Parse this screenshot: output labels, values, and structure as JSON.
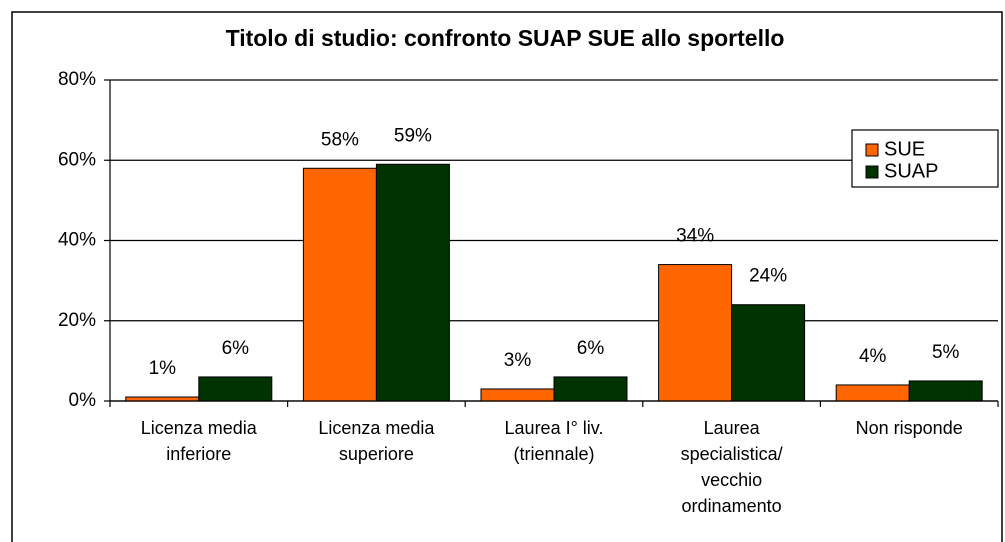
{
  "chart_data": {
    "type": "bar",
    "title": "Titolo di studio: confronto SUAP SUE allo sportello",
    "categories": [
      "Licenza media\ninferiore",
      "Licenza media\nsuperiore",
      "Laurea I° liv.\n(triennale)",
      "Laurea\nspecialistica/\nvecchio\nordinamento",
      "Non risponde"
    ],
    "series": [
      {
        "name": "SUE",
        "color": "#ff6600",
        "values": [
          1,
          58,
          3,
          34,
          4
        ],
        "value_labels": [
          "1%",
          "58%",
          "3%",
          "34%",
          "4%"
        ]
      },
      {
        "name": "SUAP",
        "color": "#003300",
        "values": [
          6,
          59,
          6,
          24,
          5
        ],
        "value_labels": [
          "6%",
          "59%",
          "6%",
          "24%",
          "5%"
        ]
      }
    ],
    "ylim": [
      0,
      80
    ],
    "yticks": [
      {
        "value": 0,
        "label": "0%"
      },
      {
        "value": 20,
        "label": "20%"
      },
      {
        "value": 40,
        "label": "40%"
      },
      {
        "value": 60,
        "label": "60%"
      },
      {
        "value": 80,
        "label": "80%"
      }
    ],
    "grid": true,
    "legend": "top-right"
  }
}
